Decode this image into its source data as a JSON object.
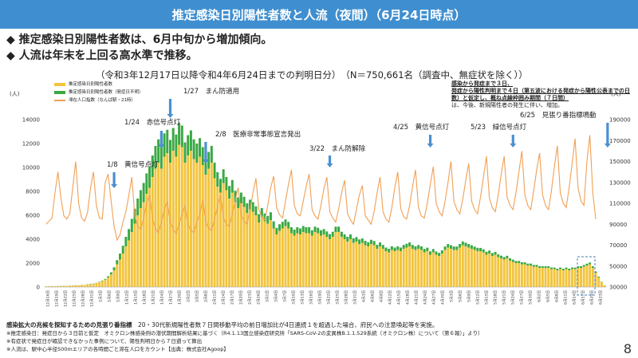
{
  "header": {
    "title": "推定感染日別陽性者数と人流（夜間）（6月24日時点）"
  },
  "bullets": [
    "推定感染日別陽性者数は、6月中旬から増加傾向。",
    "人流は年末を上回る高水準で推移。"
  ],
  "subtitle": "（令和3年12月17日以降令和4年6月24日までの判明日分）　（N＝750,661名（調査中、無症状を除く））",
  "notes": {
    "line1": "感染から発症まで３日、",
    "line2": "発症から陽性判明まで４日（第五波における発症から陽性公表までの日数）と仮定し、概ね点線枠囲み期間（７日間）",
    "line3": "は、今後、新規陽性者の発生に伴い、増加。"
  },
  "legend": {
    "item1": "推定感染日別陽性者数",
    "item2": "推定感染日別陽性者数（発症日不明）",
    "item3": "滞在人口指数（なんば駅・21時）"
  },
  "colors": {
    "bar_main": "#f2c43d",
    "bar_unknown": "#3aa843",
    "line": "#f0a055",
    "arrow": "#4a90d0",
    "title_bg": "#3f8fd0"
  },
  "chart_data": {
    "type": "bar",
    "left_axis": {
      "label": "(人)",
      "ylim": [
        0,
        14000
      ],
      "ticks": [
        "0",
        "2000",
        "4000",
        "6000",
        "8000",
        "10000",
        "12000",
        "14000"
      ]
    },
    "right_axis": {
      "label": "(人)",
      "ylim": [
        30000,
        190000
      ],
      "ticks": [
        "30000",
        "50000",
        "70000",
        "90000",
        "110000",
        "130000",
        "150000",
        "170000",
        "190000"
      ]
    },
    "x_tick_labels": [
      "12月16日",
      "12月19日",
      "12月22日",
      "12月25日",
      "12月28日",
      "12月31日",
      "1月3日",
      "1月6日",
      "1月9日",
      "1月12日",
      "1月15日",
      "1月18日",
      "1月21日",
      "1月24日",
      "1月27日",
      "1月30日",
      "2月2日",
      "2月5日",
      "2月8日",
      "2月11日",
      "2月14日",
      "2月17日",
      "2月20日",
      "2月23日",
      "2月26日",
      "3月1日",
      "3月4日",
      "3月7日",
      "3月10日",
      "3月13日",
      "3月16日",
      "3月19日",
      "3月22日",
      "3月25日",
      "3月28日",
      "3月31日",
      "4月3日",
      "4月6日",
      "4月9日",
      "4月12日",
      "4月15日",
      "4月18日",
      "4月21日",
      "4月24日",
      "4月27日",
      "4月30日",
      "5月3日",
      "5月6日",
      "5月9日",
      "5月12日",
      "5月15日",
      "5月18日",
      "5月21日",
      "5月24日",
      "5月27日",
      "5月30日",
      "6月2日",
      "6月5日",
      "6月8日",
      "6月11日",
      "6月14日",
      "6月17日",
      "6月20日",
      "6月23日"
    ],
    "series": [
      {
        "name": "推定感染日別陽性者数",
        "values": [
          50,
          60,
          70,
          60,
          80,
          90,
          100,
          80,
          110,
          120,
          150,
          130,
          170,
          160,
          220,
          250,
          280,
          330,
          400,
          500,
          620,
          800,
          1050,
          1400,
          1900,
          2300,
          2800,
          3400,
          3900,
          4600,
          5300,
          6000,
          6600,
          7100,
          7800,
          8300,
          9200,
          9900,
          10400,
          9900,
          10900,
          11200,
          10400,
          11400,
          10900,
          11900,
          11700,
          10400,
          11000,
          11400,
          10700,
          10400,
          10900,
          10200,
          9400,
          9900,
          10400,
          9100,
          8400,
          7900,
          8700,
          8100,
          7400,
          7900,
          7100,
          6600,
          7000,
          6700,
          6200,
          6500,
          6300,
          6000,
          5400,
          5900,
          5500,
          5300,
          5600,
          4900,
          4400,
          4700,
          4900,
          5100,
          4900,
          4500,
          4300,
          4500,
          4400,
          4600,
          4500,
          4500,
          4300,
          4600,
          4500,
          4300,
          4400,
          4200,
          4000,
          4200,
          4600,
          4600,
          4200,
          4000,
          3800,
          4000,
          3700,
          3800,
          3600,
          3700,
          3500,
          3400,
          3600,
          3500,
          3200,
          3400,
          3200,
          3000,
          2900,
          3100,
          3000,
          3100,
          3000,
          3200,
          3300,
          3400,
          3200,
          3100,
          3200,
          3100,
          2900,
          3000,
          2700,
          2900,
          2700,
          2600,
          2800,
          3100,
          3300,
          3200,
          3100,
          3100,
          3300,
          3500,
          3400,
          3300,
          3200,
          3100,
          3000,
          3000,
          2900,
          2700,
          2800,
          2600,
          2700,
          2500,
          2400,
          2300,
          2400,
          2200,
          2100,
          2000,
          2000,
          1900,
          1900,
          1800,
          1800,
          1700,
          1700,
          1600,
          1600,
          1600,
          1600,
          1500,
          1500,
          1400,
          1500,
          1400,
          1500,
          1400,
          1500,
          1500,
          1600,
          1600,
          1700,
          1800,
          1900,
          1600,
          1200,
          800,
          400,
          150
        ]
      },
      {
        "name": "推定感染日別陽性者数（発症日不明）",
        "values": [
          10,
          10,
          10,
          10,
          10,
          10,
          10,
          10,
          10,
          10,
          10,
          10,
          10,
          10,
          20,
          20,
          20,
          20,
          30,
          40,
          60,
          100,
          180,
          250,
          350,
          500,
          650,
          800,
          950,
          1100,
          1250,
          1400,
          1500,
          1600,
          1700,
          1750,
          1800,
          1900,
          1950,
          1900,
          1950,
          1950,
          1900,
          1900,
          1850,
          1850,
          1800,
          1700,
          1700,
          1700,
          1650,
          1600,
          1550,
          1500,
          1400,
          1400,
          1400,
          1300,
          1200,
          1150,
          1150,
          1100,
          1050,
          1050,
          950,
          900,
          900,
          850,
          800,
          800,
          800,
          750,
          700,
          700,
          650,
          650,
          650,
          600,
          550,
          550,
          550,
          550,
          550,
          500,
          500,
          500,
          500,
          500,
          500,
          500,
          450,
          450,
          450,
          450,
          450,
          450,
          420,
          420,
          450,
          450,
          420,
          400,
          400,
          400,
          380,
          380,
          380,
          360,
          360,
          350,
          350,
          350,
          330,
          330,
          320,
          300,
          300,
          300,
          300,
          300,
          300,
          320,
          320,
          330,
          320,
          310,
          310,
          300,
          290,
          290,
          280,
          280,
          270,
          260,
          270,
          290,
          300,
          300,
          290,
          290,
          300,
          310,
          310,
          300,
          290,
          280,
          280,
          270,
          260,
          250,
          250,
          240,
          240,
          230,
          220,
          210,
          210,
          200,
          190,
          180,
          180,
          170,
          170,
          160,
          160,
          150,
          150,
          150,
          140,
          140,
          140,
          130,
          130,
          130,
          130,
          130,
          130,
          130,
          130,
          130,
          140,
          140,
          140,
          150,
          150,
          130,
          100,
          70,
          30,
          10
        ]
      },
      {
        "name": "滞在人口指数（なんば駅・21時）",
        "values": [
          90000,
          93000,
          96000,
          120000,
          140000,
          115000,
          98000,
          95000,
          100000,
          125000,
          150000,
          110000,
          96000,
          93000,
          101000,
          124000,
          140000,
          108000,
          96000,
          95000,
          130000,
          138000,
          112000,
          88000,
          75000,
          80000,
          92000,
          102000,
          118000,
          135000,
          98000,
          88000,
          85000,
          96000,
          110000,
          118000,
          95000,
          86000,
          82000,
          92000,
          104000,
          112000,
          92000,
          85000,
          81000,
          90000,
          100000,
          108000,
          90000,
          84000,
          82000,
          92000,
          100000,
          113000,
          93000,
          86000,
          84000,
          95000,
          107000,
          118000,
          96000,
          90000,
          88000,
          100000,
          113000,
          125000,
          99000,
          93000,
          90000,
          104000,
          120000,
          134000,
          104000,
          97000,
          94000,
          108000,
          125000,
          136000,
          106000,
          99000,
          96000,
          112000,
          128000,
          142000,
          108000,
          100000,
          98000,
          112000,
          126000,
          138000,
          104000,
          98000,
          95000,
          108000,
          124000,
          135000,
          102000,
          96000,
          92000,
          105000,
          120000,
          132000,
          100000,
          94000,
          90000,
          104000,
          118000,
          127000,
          98000,
          94000,
          90000,
          102000,
          120000,
          135000,
          102000,
          95000,
          92000,
          106000,
          125000,
          140000,
          105000,
          97000,
          95000,
          108000,
          126000,
          142000,
          106000,
          98000,
          96000,
          110000,
          128000,
          145000,
          110000,
          102000,
          98000,
          112000,
          130000,
          150000,
          112000,
          104000,
          100000,
          114000,
          132000,
          148000,
          112000,
          104000,
          100000,
          116000,
          135000,
          155000,
          115000,
          106000,
          102000,
          118000,
          138000,
          155000,
          116000,
          108000,
          104000,
          120000,
          140000,
          160000,
          118000,
          108000,
          104000,
          122000,
          142000,
          158000,
          118000,
          108000,
          104000,
          122000,
          145000,
          165000,
          120000,
          110000,
          106000,
          125000,
          148000,
          172000,
          125000,
          112000,
          108000,
          150000,
          175000,
          120000,
          95000
        ]
      }
    ],
    "annotations": [
      {
        "label": "1/8　黄信号点灯",
        "index": 23
      },
      {
        "label": "1/24　赤信号点灯",
        "index": 39
      },
      {
        "label": "1/27　まん防適用",
        "index": 42
      },
      {
        "label": "2/8　医療非常事態宣言発出",
        "index": 54
      },
      {
        "label": "3/22　まん防解除",
        "index": 96
      },
      {
        "label": "4/25　黄信号点灯",
        "index": 130
      },
      {
        "label": "5/23　緑信号点灯",
        "index": 158
      },
      {
        "label": "6/25　見張り番指標鳴動",
        "index": 190
      }
    ]
  },
  "footer": {
    "line1_label": "感染拡大の兆候を探知するための見張り番指標",
    "line1_text": "20・30代新規陽性者数７日間移動平均の前日増加比が4日連続１を超過した場合、府民への注意喚起等を実施。",
    "line2": "※推定感染日：発症日から３日前と仮定　オミクロン株感染例の潜伏期間解析結果に基づく（R4.1.13国立感染症研究所「SARS-CoV-2の変異株B.1.1.529系統（オミクロン株）について（第６報）」より）",
    "line3": "※有症状で発症日が確認できなかった事例について、陽性判明日から７日遡って算出",
    "line4": "※人流は、駅中心半径500mエリアの各時間ごと滞在人口をカウント【出典：株式会社Agoop】"
  },
  "page_number": "8"
}
